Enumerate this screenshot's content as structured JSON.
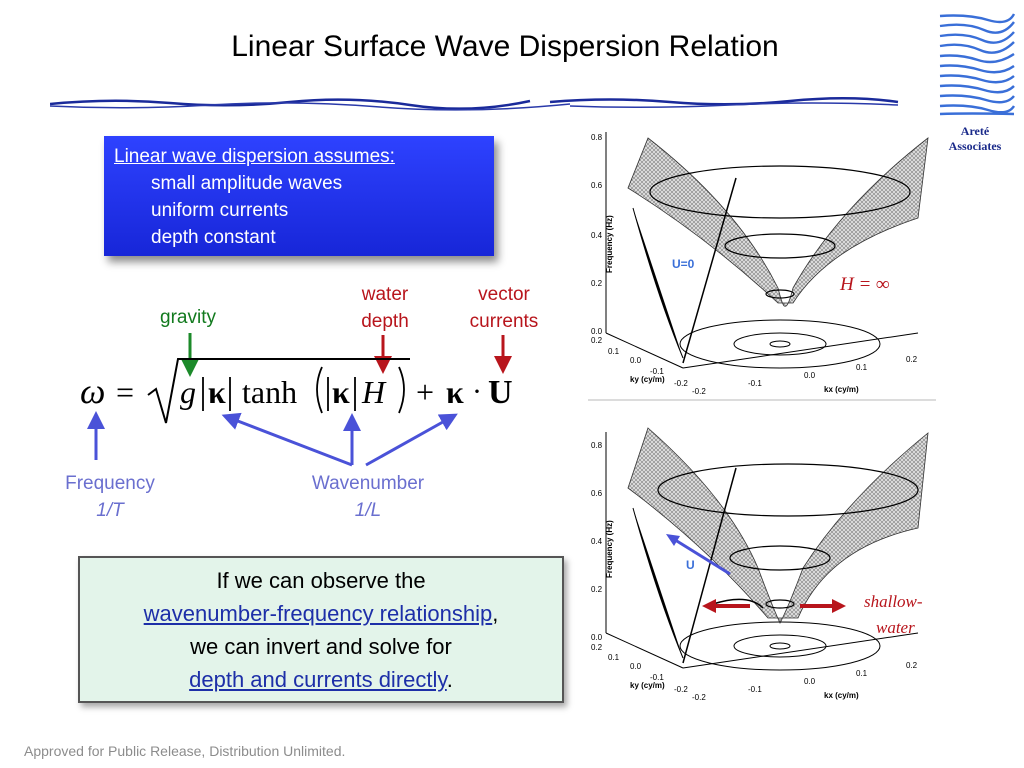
{
  "title": "Linear Surface Wave Dispersion Relation",
  "logo": {
    "name_line1": "Areté",
    "name_line2": "Associates"
  },
  "assumptions": {
    "heading": "Linear wave dispersion assumes:",
    "items": [
      "small amplitude waves",
      "uniform currents",
      "depth constant"
    ]
  },
  "labels": {
    "gravity": "gravity",
    "water_depth": [
      "water",
      "depth"
    ],
    "vector_currents": [
      "vector",
      "currents"
    ],
    "frequency": "Frequency",
    "frequency_unit": "1/T",
    "wavenumber": "Wavenumber",
    "wavenumber_unit": "1/L"
  },
  "equation": {
    "omega": "ω",
    "eq": "=",
    "g": "g",
    "kappa": "κ",
    "tanh": "tanh",
    "H": "H",
    "plus": "+",
    "dot": "·",
    "U": "U"
  },
  "conclusion": {
    "line1": "If we can observe the",
    "link1": "wavenumber-frequency relationship",
    "comma": ",",
    "line3": "we can invert and solve for",
    "link2": "depth and currents directly",
    "period": "."
  },
  "plots": {
    "top": {
      "label_H": "H = ∞",
      "u_label": "U=0"
    },
    "bottom": {
      "label_line1": "shallow-",
      "label_line2": "water",
      "u_label": "U"
    },
    "ylabel": "Frequency (Hz)",
    "xlabel_ky": "ky (cy/m)",
    "xlabel_kx": "kx (cy/m)",
    "yticks": [
      "0.8",
      "0.6",
      "0.4",
      "0.2",
      "0.0"
    ],
    "ky_ticks": [
      "0.2",
      "0.1",
      "0.0",
      "-0.1",
      "-0.2"
    ],
    "kx_ticks": [
      "-0.2",
      "-0.1",
      "0.0",
      "0.1",
      "0.2"
    ]
  },
  "footer": "Approved for Public Release, Distribution Unlimited.",
  "colors": {
    "accent_blue": "#1f2fe6",
    "arrow_red": "#b8151c",
    "arrow_green": "#1c8a2a",
    "arrow_lavender": "#4a52d8",
    "box_green": "#e3f4ea"
  }
}
